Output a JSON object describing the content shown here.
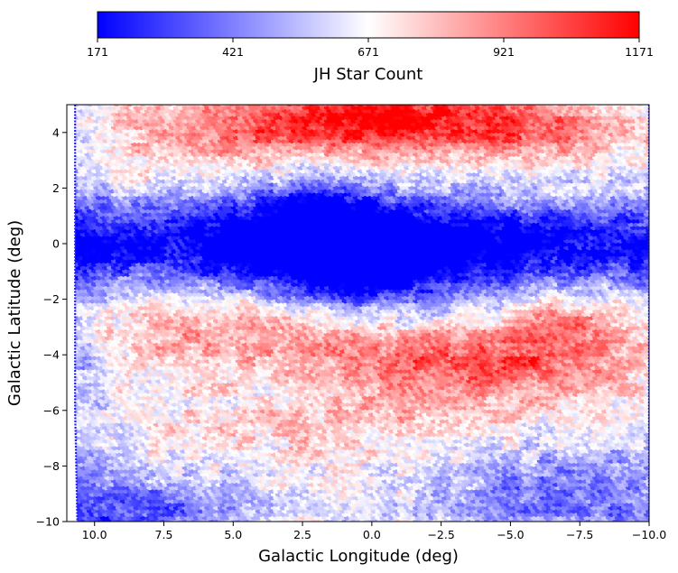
{
  "chart_data": {
    "type": "heatmap",
    "title": "",
    "xlabel": "Galactic Longitude (deg)",
    "ylabel": "Galactic Latitude (deg)",
    "xlim": [
      11.0,
      -10.0
    ],
    "ylim": [
      -10,
      5
    ],
    "x_ticks": [
      10.0,
      7.5,
      5.0,
      2.5,
      0.0,
      -2.5,
      -5.0,
      -7.5,
      -10.0
    ],
    "x_tick_labels": [
      "10.0",
      "7.5",
      "5.0",
      "2.5",
      "0.0",
      "−2.5",
      "−5.0",
      "−7.5",
      "−10.0"
    ],
    "y_ticks": [
      4,
      2,
      0,
      -2,
      -4,
      -6,
      -8,
      -10
    ],
    "y_tick_labels": [
      "4",
      "2",
      "0",
      "−2",
      "−4",
      "−6",
      "−8",
      "−10"
    ],
    "colorbar": {
      "label": "JH Star Count",
      "min": 171,
      "max": 1171,
      "ticks": [
        171,
        421,
        671,
        921,
        1171
      ],
      "tick_labels": [
        "171",
        "421",
        "671",
        "921",
        "1171"
      ],
      "orientation": "horizontal",
      "placement": "top",
      "colormap": "bwr",
      "color_low": "#0000ff",
      "color_mid": "#ffffff",
      "color_high": "#ff0000"
    },
    "grid": false,
    "legend": false
  }
}
